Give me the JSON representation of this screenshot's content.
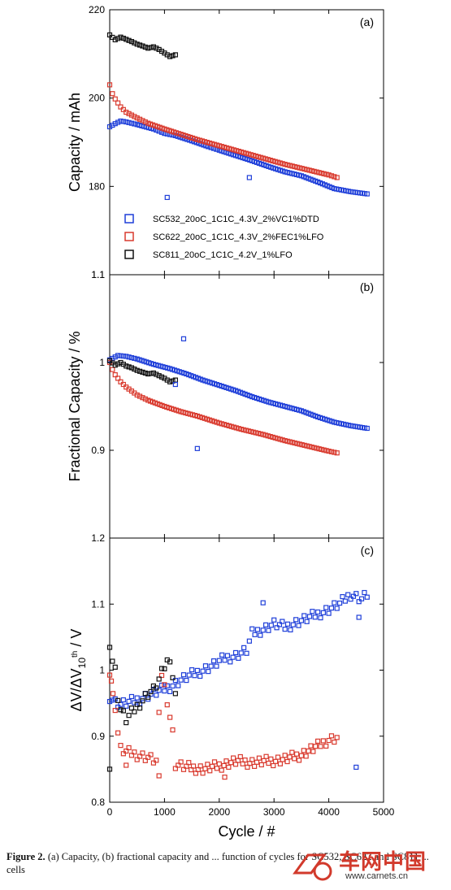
{
  "chart_data": [
    {
      "type": "scatter",
      "panel": "(a)",
      "ylabel": "Capacity / mAh",
      "xlabel": "",
      "ylim": [
        160,
        220
      ],
      "xlim": [
        0,
        5000
      ],
      "yticks": [
        {
          "v": 180,
          "label": "180"
        },
        {
          "v": 200,
          "label": "200"
        },
        {
          "v": 220,
          "label": "220"
        }
      ],
      "bottom_tick_label": "1.1",
      "legend_position": "bottom-left",
      "series": [
        {
          "name": "SC532_20oC_1C1C_4.3V_2%VC1%DTD",
          "color": "#1f3fd9",
          "x": [
            0,
            100,
            200,
            300,
            500,
            800,
            1000,
            1200,
            1500,
            1800,
            2000,
            2300,
            2600,
            2900,
            3200,
            3500,
            3800,
            4100,
            4400,
            4700
          ],
          "y": [
            193.5,
            194.2,
            194.8,
            194.6,
            194.0,
            193.0,
            192.0,
            191.5,
            190.3,
            189.0,
            188.2,
            187.0,
            185.8,
            184.5,
            183.3,
            182.4,
            181.0,
            179.5,
            178.8,
            178.3
          ]
        },
        {
          "name": "SC622_20oC_1C1C_4.3V_2%FEC1%LFO",
          "color": "#d93a2e",
          "x": [
            0,
            50,
            100,
            200,
            300,
            500,
            700,
            1000,
            1300,
            1600,
            2000,
            2400,
            2800,
            3200,
            3600,
            4000,
            4150
          ],
          "y": [
            203.0,
            201.0,
            199.8,
            198.0,
            196.8,
            195.5,
            194.3,
            193.0,
            191.8,
            190.6,
            189.2,
            187.8,
            186.4,
            185.0,
            183.8,
            182.6,
            182.0
          ]
        },
        {
          "name": "SC811_20oC_1C1C_4.2V_1%LFO",
          "color": "#111111",
          "x": [
            0,
            100,
            200,
            300,
            400,
            500,
            600,
            700,
            800,
            900,
            1000,
            1100,
            1200
          ],
          "y": [
            214.3,
            213.2,
            213.8,
            213.3,
            212.8,
            212.2,
            211.8,
            211.3,
            211.6,
            211.0,
            210.2,
            209.4,
            209.8
          ]
        }
      ],
      "outliers": [
        {
          "series": "SC532_20oC_1C1C_4.3V_2%VC1%DTD",
          "x": 1050,
          "y": 177.5
        },
        {
          "series": "SC532_20oC_1C1C_4.3V_2%VC1%DTD",
          "x": 2550,
          "y": 182.0
        }
      ],
      "annotation": "(a)"
    },
    {
      "type": "scatter",
      "panel": "(b)",
      "ylabel": "Fractional Capacity / %",
      "xlabel": "",
      "ylim": [
        0.8,
        1.1
      ],
      "xlim": [
        0,
        5000
      ],
      "yticks": [
        {
          "v": 0.9,
          "label": "0.9"
        },
        {
          "v": 1.0,
          "label": "1"
        }
      ],
      "top_tick_label": "1.1",
      "bottom_tick_label": "1.2",
      "series": [
        {
          "name": "SC532_20oC_1C1C_4.3V_2%VC1%DTD",
          "color": "#1f3fd9",
          "x": [
            0,
            150,
            300,
            500,
            800,
            1100,
            1400,
            1700,
            2000,
            2300,
            2600,
            2900,
            3200,
            3500,
            3800,
            4100,
            4400,
            4700
          ],
          "y": [
            1.003,
            1.008,
            1.007,
            1.004,
            0.998,
            0.993,
            0.987,
            0.98,
            0.974,
            0.968,
            0.961,
            0.955,
            0.95,
            0.945,
            0.938,
            0.932,
            0.928,
            0.925
          ]
        },
        {
          "name": "SC622_20oC_1C1C_4.3V_2%FEC1%LFO",
          "color": "#d93a2e",
          "x": [
            0,
            50,
            100,
            200,
            300,
            500,
            700,
            1000,
            1300,
            1600,
            2000,
            2400,
            2800,
            3200,
            3600,
            4000,
            4150
          ],
          "y": [
            1.0,
            0.992,
            0.986,
            0.978,
            0.972,
            0.963,
            0.957,
            0.95,
            0.944,
            0.939,
            0.931,
            0.924,
            0.918,
            0.911,
            0.905,
            0.899,
            0.897
          ]
        },
        {
          "name": "SC811_20oC_1C1C_4.2V_1%LFO",
          "color": "#111111",
          "x": [
            0,
            100,
            200,
            300,
            400,
            500,
            600,
            700,
            800,
            900,
            1000,
            1100,
            1200
          ],
          "y": [
            1.002,
            0.997,
            1.0,
            0.996,
            0.994,
            0.991,
            0.989,
            0.987,
            0.988,
            0.985,
            0.982,
            0.978,
            0.98
          ]
        }
      ],
      "outliers": [
        {
          "series": "SC532_20oC_1C1C_4.3V_2%VC1%DTD",
          "x": 1350,
          "y": 1.027
        },
        {
          "series": "SC532_20oC_1C1C_4.3V_2%VC1%DTD",
          "x": 1600,
          "y": 0.902
        },
        {
          "series": "SC532_20oC_1C1C_4.3V_2%VC1%DTD",
          "x": 1200,
          "y": 0.975
        }
      ],
      "annotation": "(b)"
    },
    {
      "type": "scatter",
      "panel": "(c)",
      "ylabel": "ΔV/ΔV10th / V",
      "xlabel": "Cycle / #",
      "ylim": [
        0.8,
        1.2
      ],
      "xlim": [
        0,
        5000
      ],
      "yticks": [
        {
          "v": 0.8,
          "label": "0.8"
        },
        {
          "v": 0.9,
          "label": "0.9"
        },
        {
          "v": 1.0,
          "label": "1"
        },
        {
          "v": 1.1,
          "label": "1.1"
        }
      ],
      "xticks": [
        0,
        1000,
        2000,
        3000,
        4000,
        5000
      ],
      "series": [
        {
          "name": "SC532_20oC_1C1C_4.3V_2%VC1%DTD",
          "color": "#1f3fd9",
          "x": [
            0,
            100,
            200,
            300,
            500,
            700,
            900,
            1100,
            1300,
            1500,
            1700,
            1900,
            2100,
            2300,
            2500,
            2600,
            2800,
            3000,
            3200,
            3400,
            3600,
            3800,
            4000,
            4200,
            4400,
            4600,
            4700
          ],
          "y": [
            0.96,
            0.952,
            0.948,
            0.95,
            0.955,
            0.962,
            0.968,
            0.975,
            0.985,
            0.993,
            1.0,
            1.008,
            1.018,
            1.022,
            1.03,
            1.055,
            1.062,
            1.07,
            1.065,
            1.072,
            1.078,
            1.085,
            1.092,
            1.1,
            1.115,
            1.108,
            1.115
          ]
        },
        {
          "name": "SC622_20oC_1C1C_4.3V_2%FEC1%LFO",
          "color": "#d93a2e",
          "x": [
            0,
            30,
            60,
            100,
            150,
            200,
            300,
            500,
            700,
            850,
            950,
            1000,
            1050,
            1100,
            1150,
            1200,
            1400,
            1700,
            2000,
            2300,
            2600,
            2900,
            3200,
            3500,
            3800,
            4000,
            4150
          ],
          "y": [
            1.0,
            0.985,
            0.96,
            0.945,
            0.905,
            0.88,
            0.876,
            0.872,
            0.868,
            0.862,
            0.995,
            0.975,
            0.955,
            0.93,
            0.905,
            0.857,
            0.853,
            0.85,
            0.855,
            0.862,
            0.86,
            0.862,
            0.865,
            0.872,
            0.885,
            0.895,
            0.898
          ]
        },
        {
          "name": "SC811_20oC_1C1C_4.2V_1%LFO",
          "color": "#111111",
          "x": [
            0,
            50,
            100,
            150,
            200,
            300,
            400,
            500,
            600,
            700,
            800,
            900,
            1000,
            1100,
            1200
          ],
          "y": [
            1.042,
            1.015,
            1.0,
            0.96,
            0.94,
            0.925,
            0.935,
            0.945,
            0.955,
            0.965,
            0.97,
            0.985,
            1.005,
            1.02,
            0.96
          ]
        }
      ],
      "outliers": [
        {
          "series": "SC811_20oC_1C1C_4.2V_1%LFO",
          "x": 0,
          "y": 0.85
        },
        {
          "series": "SC532_20oC_1C1C_4.3V_2%VC1%DTD",
          "x": 2800,
          "y": 1.102
        },
        {
          "series": "SC532_20oC_1C1C_4.3V_2%VC1%DTD",
          "x": 4500,
          "y": 0.853
        },
        {
          "series": "SC532_20oC_1C1C_4.3V_2%VC1%DTD",
          "x": 4550,
          "y": 1.08
        },
        {
          "series": "SC622_20oC_1C1C_4.3V_2%FEC1%LFO",
          "x": 300,
          "y": 0.856
        },
        {
          "series": "SC622_20oC_1C1C_4.3V_2%FEC1%LFO",
          "x": 900,
          "y": 0.84
        },
        {
          "series": "SC622_20oC_1C1C_4.3V_2%FEC1%LFO",
          "x": 2100,
          "y": 0.838
        }
      ],
      "annotation": "(c)"
    }
  ],
  "caption": {
    "label": "Figure 2.",
    "text": "(a) Capacity, (b) fractional capacity and ... function of cycles for SC532, SC622 and SC811 ... cells"
  },
  "watermark": {
    "text": "车网中国",
    "url": "www.carnets.cn"
  }
}
